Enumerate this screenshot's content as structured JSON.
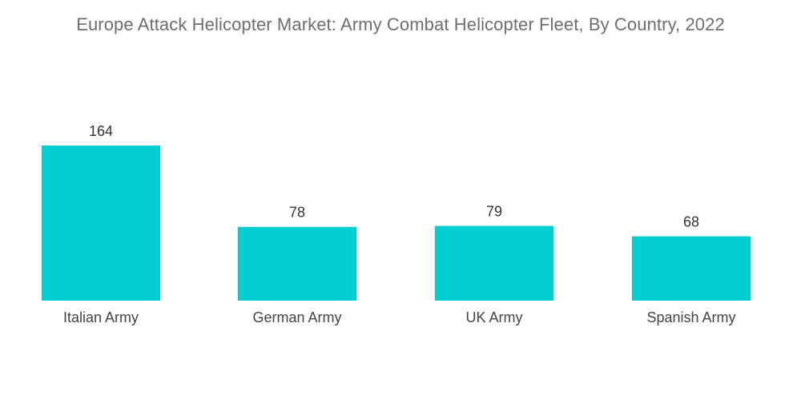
{
  "title": "Europe Attack Helicopter Market: Army Combat Helicopter Fleet, By Country, 2022",
  "colors": {
    "bar": "#00ced1",
    "title": "#6e6e6e",
    "label": "#444444"
  },
  "chart_data": {
    "type": "bar",
    "title": "Europe Attack Helicopter Market: Army Combat Helicopter Fleet, By Country, 2022",
    "categories": [
      "Italian Army",
      "German Army",
      "UK Army",
      "Spanish Army"
    ],
    "values": [
      164,
      78,
      79,
      68
    ],
    "xlabel": "",
    "ylabel": "",
    "ylim": [
      0,
      164
    ],
    "grid": false,
    "data_labels": true
  }
}
